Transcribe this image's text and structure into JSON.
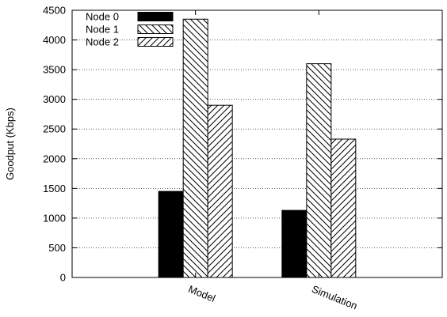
{
  "chart_data": {
    "type": "bar",
    "categories": [
      "Model",
      "Simulation"
    ],
    "series": [
      {
        "name": "Node 0",
        "values": [
          1450,
          1130
        ],
        "pattern": "solid"
      },
      {
        "name": "Node 1",
        "values": [
          4350,
          3600
        ],
        "pattern": "back-diagonal"
      },
      {
        "name": "Node 2",
        "values": [
          2900,
          2330
        ],
        "pattern": "forward-diagonal"
      }
    ],
    "xlabel": "",
    "ylabel": "Goodput (Kbps)",
    "ylim": [
      0,
      4500
    ],
    "yticks": [
      0,
      500,
      1000,
      1500,
      2000,
      2500,
      3000,
      3500,
      4000,
      4500
    ],
    "grid": "horizontal dotted",
    "legend_position": "top-left"
  }
}
